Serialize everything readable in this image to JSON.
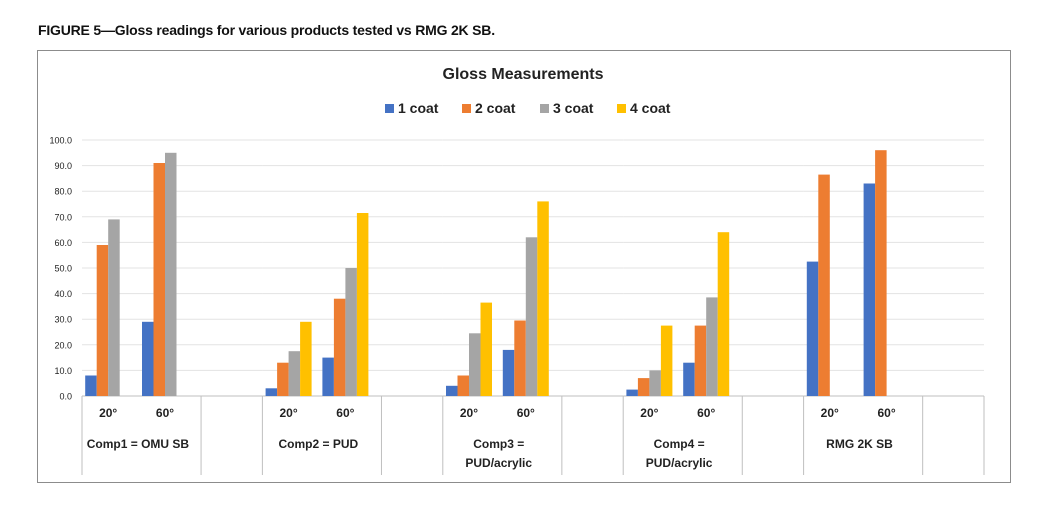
{
  "figure_caption": "FIGURE 5—Gloss readings for various products tested vs RMG 2K SB.",
  "chart_data": {
    "type": "bar",
    "title": "Gloss Measurements",
    "legend_position": "top-center",
    "grid": true,
    "ylim": [
      0,
      100
    ],
    "y_ticks": [
      "0.0",
      "10.0",
      "20.0",
      "30.0",
      "40.0",
      "50.0",
      "60.0",
      "70.0",
      "80.0",
      "90.0",
      "100.0"
    ],
    "angle_labels": [
      "20°",
      "60°"
    ],
    "groups": [
      {
        "label": "Comp1 = OMU SB"
      },
      {
        "label": "Comp2 = PUD"
      },
      {
        "label": "Comp3 =\nPUD/acrylic"
      },
      {
        "label": "Comp4 =\nPUD/acrylic"
      },
      {
        "label": "RMG 2K SB"
      }
    ],
    "series": [
      {
        "name": "1 coat",
        "color": "#4472c4",
        "values": [
          [
            8,
            29
          ],
          [
            3,
            15
          ],
          [
            4,
            18
          ],
          [
            2.5,
            13
          ],
          [
            52.5,
            83
          ]
        ]
      },
      {
        "name": "2 coat",
        "color": "#ed7d31",
        "values": [
          [
            59,
            91
          ],
          [
            13,
            38
          ],
          [
            8,
            29.5
          ],
          [
            7,
            27.5
          ],
          [
            86.5,
            96
          ]
        ]
      },
      {
        "name": "3 coat",
        "color": "#a5a5a5",
        "values": [
          [
            69,
            95
          ],
          [
            17.5,
            50
          ],
          [
            24.5,
            62
          ],
          [
            10,
            38.5
          ],
          [
            null,
            null
          ]
        ]
      },
      {
        "name": "4 coat",
        "color": "#ffc000",
        "values": [
          [
            null,
            null
          ],
          [
            29,
            71.5
          ],
          [
            36.5,
            76
          ],
          [
            27.5,
            64
          ],
          [
            null,
            null
          ]
        ]
      }
    ]
  }
}
